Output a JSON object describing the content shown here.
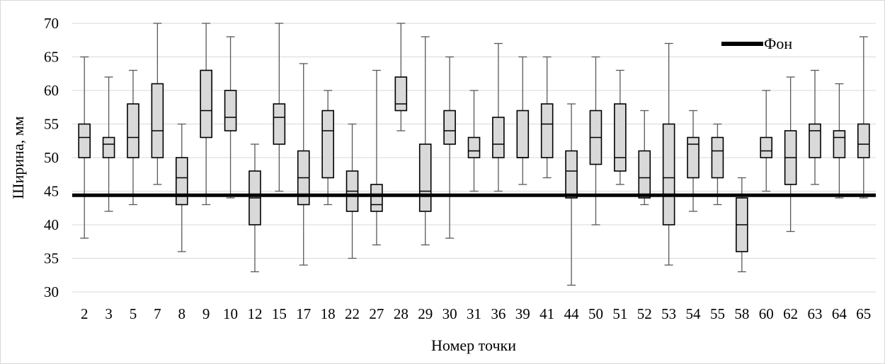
{
  "chart_data": {
    "type": "boxplot",
    "title": "",
    "xlabel": "Номер точки",
    "ylabel": "Ширина, мм",
    "ylim": [
      30,
      70
    ],
    "yticks": [
      30,
      35,
      40,
      45,
      50,
      55,
      60,
      65,
      70
    ],
    "grid": true,
    "legend_position": "top-right",
    "colors": {
      "box_fill": "#d9d9d9",
      "box_stroke": "#000000",
      "whisker": "#595959",
      "grid": "#d9d9d9",
      "reference_line": "#000000"
    },
    "categories": [
      "2",
      "3",
      "5",
      "7",
      "8",
      "9",
      "10",
      "12",
      "15",
      "17",
      "18",
      "22",
      "27",
      "28",
      "29",
      "30",
      "31",
      "36",
      "39",
      "41",
      "44",
      "50",
      "51",
      "52",
      "53",
      "54",
      "55",
      "58",
      "60",
      "62",
      "63",
      "64",
      "65"
    ],
    "boxes": [
      {
        "min": 38,
        "q1": 50,
        "median": 53,
        "q3": 55,
        "max": 65
      },
      {
        "min": 42,
        "q1": 50,
        "median": 52,
        "q3": 53,
        "max": 62
      },
      {
        "min": 43,
        "q1": 50,
        "median": 53,
        "q3": 58,
        "max": 63
      },
      {
        "min": 46,
        "q1": 50,
        "median": 54,
        "q3": 61,
        "max": 70
      },
      {
        "min": 36,
        "q1": 43,
        "median": 47,
        "q3": 50,
        "max": 55
      },
      {
        "min": 43,
        "q1": 53,
        "median": 57,
        "q3": 63,
        "max": 70
      },
      {
        "min": 44,
        "q1": 54,
        "median": 56,
        "q3": 60,
        "max": 68
      },
      {
        "min": 33,
        "q1": 40,
        "median": 44,
        "q3": 48,
        "max": 52
      },
      {
        "min": 45,
        "q1": 52,
        "median": 56,
        "q3": 58,
        "max": 70
      },
      {
        "min": 34,
        "q1": 43,
        "median": 47,
        "q3": 51,
        "max": 64
      },
      {
        "min": 43,
        "q1": 47,
        "median": 54,
        "q3": 57,
        "max": 60
      },
      {
        "min": 35,
        "q1": 42,
        "median": 45,
        "q3": 48,
        "max": 55
      },
      {
        "min": 37,
        "q1": 42,
        "median": 43,
        "q3": 46,
        "max": 63
      },
      {
        "min": 54,
        "q1": 57,
        "median": 58,
        "q3": 62,
        "max": 70
      },
      {
        "min": 37,
        "q1": 42,
        "median": 45,
        "q3": 52,
        "max": 68
      },
      {
        "min": 38,
        "q1": 52,
        "median": 54,
        "q3": 57,
        "max": 65
      },
      {
        "min": 45,
        "q1": 50,
        "median": 51,
        "q3": 53,
        "max": 60
      },
      {
        "min": 45,
        "q1": 50,
        "median": 52,
        "q3": 56,
        "max": 67
      },
      {
        "min": 46,
        "q1": 50,
        "median": 50,
        "q3": 57,
        "max": 65
      },
      {
        "min": 47,
        "q1": 50,
        "median": 55,
        "q3": 58,
        "max": 65
      },
      {
        "min": 31,
        "q1": 44,
        "median": 48,
        "q3": 51,
        "max": 58
      },
      {
        "min": 40,
        "q1": 49,
        "median": 53,
        "q3": 57,
        "max": 65
      },
      {
        "min": 46,
        "q1": 48,
        "median": 50,
        "q3": 58,
        "max": 63
      },
      {
        "min": 43,
        "q1": 44,
        "median": 47,
        "q3": 51,
        "max": 57
      },
      {
        "min": 34,
        "q1": 40,
        "median": 47,
        "q3": 55,
        "max": 67
      },
      {
        "min": 42,
        "q1": 47,
        "median": 52,
        "q3": 53,
        "max": 57
      },
      {
        "min": 43,
        "q1": 47,
        "median": 51,
        "q3": 53,
        "max": 55
      },
      {
        "min": 33,
        "q1": 36,
        "median": 40,
        "q3": 44,
        "max": 47
      },
      {
        "min": 45,
        "q1": 50,
        "median": 51,
        "q3": 53,
        "max": 60
      },
      {
        "min": 39,
        "q1": 46,
        "median": 50,
        "q3": 54,
        "max": 62
      },
      {
        "min": 46,
        "q1": 50,
        "median": 54,
        "q3": 55,
        "max": 63
      },
      {
        "min": 44,
        "q1": 50,
        "median": 53,
        "q3": 54,
        "max": 61
      },
      {
        "min": 44,
        "q1": 50,
        "median": 52,
        "q3": 55,
        "max": 68
      }
    ],
    "reference_line": {
      "name": "Фон",
      "value": 44.4
    }
  }
}
